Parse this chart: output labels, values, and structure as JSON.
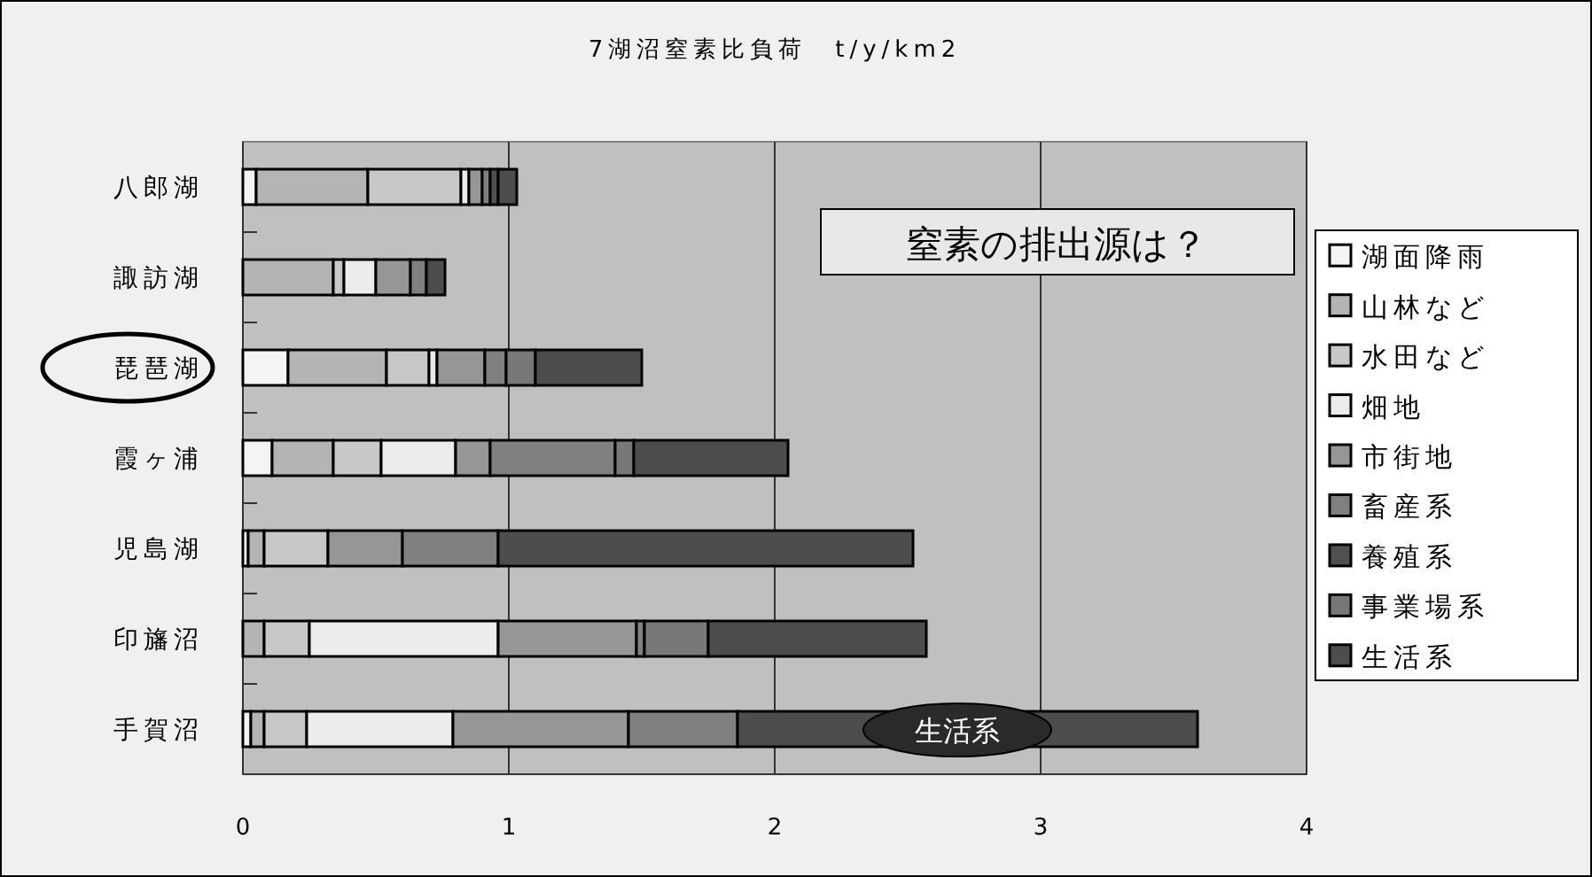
{
  "chart_data": {
    "type": "bar",
    "orientation": "horizontal",
    "stacked": true,
    "title": "7湖沼窒素比負荷　t/y/km2",
    "categories": [
      "八郎湖",
      "諏訪湖",
      "琵琶湖",
      "霞ヶ浦",
      "児島湖",
      "印旛沼",
      "手賀沼"
    ],
    "series": [
      {
        "name": "湖面降雨",
        "color": "#f4f4f4",
        "values": [
          0.05,
          null,
          0.17,
          0.11,
          0.02,
          null,
          0.03
        ]
      },
      {
        "name": "山林など",
        "color": "#b4b4b4",
        "values": [
          0.42,
          0.34,
          0.37,
          0.23,
          0.06,
          0.08,
          0.05
        ]
      },
      {
        "name": "水田など",
        "color": "#c8c8c8",
        "values": [
          0.35,
          0.04,
          0.16,
          0.18,
          0.24,
          0.17,
          0.16
        ]
      },
      {
        "name": "畑地",
        "color": "#ececec",
        "values": [
          0.03,
          0.12,
          0.03,
          0.28,
          0,
          0.71,
          0.55
        ]
      },
      {
        "name": "市街地",
        "color": "#969696",
        "values": [
          0.05,
          0.13,
          0.18,
          0.13,
          0.28,
          0.52,
          0.66
        ]
      },
      {
        "name": "畜産系",
        "color": "#808080",
        "values": [
          0.03,
          0.06,
          0.08,
          0.47,
          0.36,
          0.03,
          0.41
        ]
      },
      {
        "name": "養殖系",
        "color": "#505050",
        "values": [
          0.03,
          0,
          0,
          0,
          0,
          0,
          0
        ]
      },
      {
        "name": "事業場系",
        "color": "#787878",
        "values": [
          0,
          0,
          0.11,
          0.07,
          0,
          0.24,
          0
        ]
      },
      {
        "name": "生活系",
        "color": "#4d4d4d",
        "values": [
          0.07,
          0.07,
          0.4,
          0.58,
          1.56,
          0.82,
          1.73
        ]
      }
    ],
    "xlim": [
      0,
      4
    ],
    "xticks": [
      0,
      1,
      2,
      3,
      4
    ],
    "grid": "x",
    "legend": "right",
    "annotations": [
      "窒素の排出源は？",
      "生活系"
    ]
  }
}
